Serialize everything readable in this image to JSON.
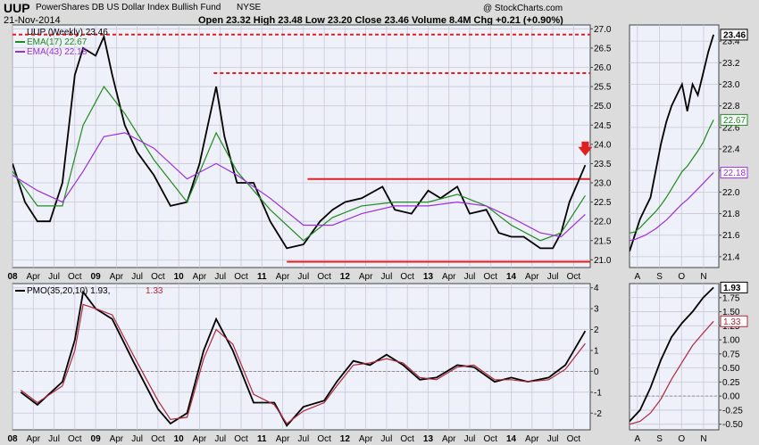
{
  "header": {
    "symbol": "UUP",
    "name": "PowerShares DB US Dollar Index Bullish Fund",
    "exchange": "NYSE",
    "date": "21-Nov-2014",
    "quote": "Open 23.32  High 23.48  Low 23.20  Close 23.46  Volume 8.4M  Chg +0.21 (+0.90%)",
    "watermark": "@ StockCharts.com"
  },
  "colors": {
    "price": "#000000",
    "ema17": "#1f8a1f",
    "ema43": "#9b30d9",
    "pmo": "#000000",
    "signal": "#b0283c",
    "resistance": "#e02020",
    "arrow": "#e02020",
    "panel_bg": "#eef0fa",
    "chart_bg": "#dcdcdc"
  },
  "legend": {
    "price": "UUP (Weekly) 23.46",
    "ema17": "EMA(17) 22.67",
    "ema43": "EMA(43) 22.18",
    "pmo_prefix": "PMO(35,20,10) 1.93,",
    "pmo_signal": "1.33"
  },
  "chart_data": [
    {
      "type": "line",
      "panel": "main-price",
      "title": "UUP PowerShares DB US Dollar Index Bullish Fund NYSE",
      "ylim": [
        20.8,
        27.1
      ],
      "y_ticks": [
        21.0,
        21.5,
        22.0,
        22.5,
        23.0,
        23.5,
        24.0,
        24.5,
        25.0,
        25.5,
        26.0,
        26.5,
        27.0
      ],
      "x_tick_labels": [
        "08",
        "Apr",
        "Jul",
        "Oct",
        "09",
        "Apr",
        "Jul",
        "Oct",
        "10",
        "Apr",
        "Jul",
        "Oct",
        "11",
        "Apr",
        "Jul",
        "Oct",
        "12",
        "Apr",
        "Jul",
        "Oct",
        "13",
        "Apr",
        "Jul",
        "Oct",
        "14",
        "Apr",
        "Jul",
        "Oct"
      ],
      "series": [
        {
          "name": "UUP (Weekly)",
          "x": [
            2008.0,
            2008.15,
            2008.3,
            2008.45,
            2008.6,
            2008.75,
            2008.85,
            2009.0,
            2009.1,
            2009.2,
            2009.35,
            2009.5,
            2009.7,
            2009.9,
            2010.1,
            2010.25,
            2010.45,
            2010.55,
            2010.7,
            2010.9,
            2011.1,
            2011.3,
            2011.5,
            2011.7,
            2011.85,
            2012.0,
            2012.2,
            2012.45,
            2012.6,
            2012.8,
            2013.0,
            2013.15,
            2013.35,
            2013.5,
            2013.7,
            2013.85,
            2014.0,
            2014.15,
            2014.35,
            2014.5,
            2014.6,
            2014.7,
            2014.8,
            2014.89
          ],
          "values": [
            23.5,
            22.5,
            22.0,
            22.0,
            23.0,
            25.8,
            26.5,
            26.3,
            26.8,
            25.8,
            24.5,
            23.8,
            23.2,
            22.4,
            22.5,
            23.5,
            25.5,
            24.2,
            23.0,
            23.0,
            22.0,
            21.3,
            21.4,
            22.0,
            22.3,
            22.5,
            22.6,
            22.9,
            22.3,
            22.2,
            22.8,
            22.6,
            22.9,
            22.2,
            22.3,
            21.7,
            21.6,
            21.6,
            21.3,
            21.3,
            21.7,
            22.5,
            23.0,
            23.46
          ]
        },
        {
          "name": "EMA(17)",
          "x": [
            2008.0,
            2008.3,
            2008.6,
            2008.85,
            2009.1,
            2009.35,
            2009.7,
            2010.1,
            2010.45,
            2010.7,
            2011.1,
            2011.5,
            2011.85,
            2012.2,
            2012.6,
            2013.0,
            2013.35,
            2013.7,
            2014.0,
            2014.35,
            2014.6,
            2014.89
          ],
          "values": [
            23.3,
            22.4,
            22.4,
            24.5,
            25.5,
            24.8,
            23.6,
            22.5,
            24.3,
            23.3,
            22.3,
            21.5,
            22.1,
            22.4,
            22.5,
            22.5,
            22.7,
            22.4,
            21.9,
            21.5,
            21.7,
            22.67
          ]
        },
        {
          "name": "EMA(43)",
          "x": [
            2008.0,
            2008.3,
            2008.6,
            2008.85,
            2009.1,
            2009.35,
            2009.7,
            2010.1,
            2010.45,
            2010.7,
            2011.1,
            2011.5,
            2011.85,
            2012.2,
            2012.6,
            2013.0,
            2013.35,
            2013.7,
            2014.0,
            2014.35,
            2014.6,
            2014.89
          ],
          "values": [
            23.2,
            22.8,
            22.5,
            23.3,
            24.2,
            24.3,
            23.9,
            23.1,
            23.5,
            23.2,
            22.6,
            21.9,
            21.9,
            22.2,
            22.4,
            22.4,
            22.5,
            22.4,
            22.1,
            21.7,
            21.6,
            22.18
          ]
        }
      ],
      "annotations": [
        {
          "type": "hline",
          "y": 26.85,
          "style": "dashed",
          "from": 2008.0,
          "to": 2014.95
        },
        {
          "type": "hline",
          "y": 25.85,
          "style": "dashed",
          "from": 2010.42,
          "to": 2014.95
        },
        {
          "type": "hline",
          "y": 23.1,
          "style": "solid",
          "from": 2011.55,
          "to": 2014.95
        },
        {
          "type": "hline",
          "y": 20.95,
          "style": "solid",
          "from": 2011.3,
          "to": 2014.95
        },
        {
          "type": "arrow-down",
          "x": 2014.89,
          "y": 23.7
        }
      ]
    },
    {
      "type": "line",
      "panel": "main-pmo",
      "title": "PMO(35,20,10)",
      "ylim": [
        -2.8,
        4.2
      ],
      "y_ticks": [
        -2,
        -1,
        0,
        1,
        2,
        3,
        4
      ],
      "x_tick_labels": [
        "08",
        "Apr",
        "Jul",
        "Oct",
        "09",
        "Apr",
        "Jul",
        "Oct",
        "10",
        "Apr",
        "Jul",
        "Oct",
        "11",
        "Apr",
        "Jul",
        "Oct",
        "12",
        "Apr",
        "Jul",
        "Oct",
        "13",
        "Apr",
        "Jul",
        "Oct",
        "14",
        "Apr",
        "Jul",
        "Oct"
      ],
      "series": [
        {
          "name": "PMO",
          "x": [
            2008.1,
            2008.3,
            2008.6,
            2008.75,
            2008.85,
            2009.0,
            2009.2,
            2009.45,
            2009.75,
            2009.9,
            2010.1,
            2010.3,
            2010.45,
            2010.65,
            2010.9,
            2011.15,
            2011.3,
            2011.5,
            2011.75,
            2011.9,
            2012.1,
            2012.3,
            2012.5,
            2012.7,
            2012.9,
            2013.1,
            2013.35,
            2013.55,
            2013.8,
            2014.0,
            2014.2,
            2014.45,
            2014.65,
            2014.89
          ],
          "values": [
            -1.0,
            -1.6,
            -0.5,
            1.5,
            3.8,
            3.0,
            2.5,
            0.5,
            -1.8,
            -2.5,
            -2.0,
            1.0,
            2.5,
            1.0,
            -1.5,
            -1.5,
            -2.6,
            -1.7,
            -1.4,
            -0.5,
            0.5,
            0.3,
            0.8,
            0.3,
            -0.4,
            -0.3,
            0.3,
            0.2,
            -0.5,
            -0.3,
            -0.5,
            -0.3,
            0.3,
            1.93
          ]
        },
        {
          "name": "Signal",
          "x": [
            2008.1,
            2008.3,
            2008.6,
            2008.75,
            2008.85,
            2009.0,
            2009.2,
            2009.45,
            2009.75,
            2009.9,
            2010.1,
            2010.3,
            2010.45,
            2010.65,
            2010.9,
            2011.15,
            2011.3,
            2011.5,
            2011.75,
            2011.9,
            2012.1,
            2012.3,
            2012.5,
            2012.7,
            2012.9,
            2013.1,
            2013.35,
            2013.55,
            2013.8,
            2014.0,
            2014.2,
            2014.45,
            2014.65,
            2014.89
          ],
          "values": [
            -0.9,
            -1.5,
            -0.7,
            1.0,
            3.2,
            3.0,
            2.7,
            0.8,
            -1.4,
            -2.3,
            -2.2,
            0.6,
            2.0,
            1.3,
            -1.1,
            -1.6,
            -2.5,
            -1.9,
            -1.5,
            -0.7,
            0.3,
            0.4,
            0.6,
            0.4,
            -0.3,
            -0.4,
            0.2,
            0.3,
            -0.4,
            -0.4,
            -0.5,
            -0.4,
            0.1,
            1.33
          ]
        }
      ]
    },
    {
      "type": "line",
      "panel": "zoom-price",
      "ylim": [
        21.3,
        23.55
      ],
      "y_ticks": [
        21.4,
        21.6,
        21.8,
        22.0,
        22.2,
        22.4,
        22.6,
        22.8,
        23.0,
        23.2,
        23.4
      ],
      "x_tick_labels": [
        "A",
        "S",
        "O",
        "N"
      ],
      "value_labels": [
        "23.46",
        "22.67",
        "22.18"
      ],
      "series": [
        {
          "name": "UUP (Weekly)",
          "x": [
            0,
            1,
            2,
            3,
            4,
            5,
            6,
            7,
            8,
            9,
            10,
            11,
            12,
            13,
            14,
            15,
            16
          ],
          "values": [
            21.45,
            21.6,
            21.75,
            21.85,
            21.95,
            22.2,
            22.45,
            22.65,
            22.8,
            22.9,
            23.0,
            22.75,
            23.0,
            22.9,
            23.1,
            23.3,
            23.46
          ]
        },
        {
          "name": "EMA(17)",
          "x": [
            0,
            1,
            2,
            3,
            4,
            5,
            6,
            7,
            8,
            9,
            10,
            11,
            12,
            13,
            14,
            15,
            16
          ],
          "values": [
            21.62,
            21.63,
            21.67,
            21.72,
            21.77,
            21.82,
            21.88,
            21.95,
            22.03,
            22.11,
            22.19,
            22.24,
            22.31,
            22.38,
            22.46,
            22.57,
            22.67
          ]
        },
        {
          "name": "EMA(43)",
          "x": [
            0,
            1,
            2,
            3,
            4,
            5,
            6,
            7,
            8,
            9,
            10,
            11,
            12,
            13,
            14,
            15,
            16
          ],
          "values": [
            21.55,
            21.56,
            21.58,
            21.6,
            21.63,
            21.66,
            21.7,
            21.74,
            21.79,
            21.84,
            21.89,
            21.93,
            21.98,
            22.03,
            22.08,
            22.13,
            22.18
          ]
        }
      ]
    },
    {
      "type": "line",
      "panel": "zoom-pmo",
      "ylim": [
        -0.6,
        2.0
      ],
      "y_ticks": [
        -0.5,
        -0.25,
        0.0,
        0.25,
        0.5,
        0.75,
        1.0,
        1.25,
        1.5,
        1.75
      ],
      "x_tick_labels": [
        "A",
        "S",
        "O",
        "N"
      ],
      "value_labels": [
        "1.93",
        "1.33"
      ],
      "series": [
        {
          "name": "PMO",
          "x": [
            0,
            2,
            4,
            6,
            8,
            10,
            12,
            14,
            16
          ],
          "values": [
            -0.45,
            -0.25,
            0.15,
            0.65,
            1.05,
            1.3,
            1.5,
            1.75,
            1.93
          ]
        },
        {
          "name": "Signal",
          "x": [
            0,
            2,
            4,
            6,
            8,
            10,
            12,
            14,
            16
          ],
          "values": [
            -0.5,
            -0.45,
            -0.3,
            -0.05,
            0.3,
            0.6,
            0.9,
            1.12,
            1.33
          ]
        }
      ]
    }
  ]
}
